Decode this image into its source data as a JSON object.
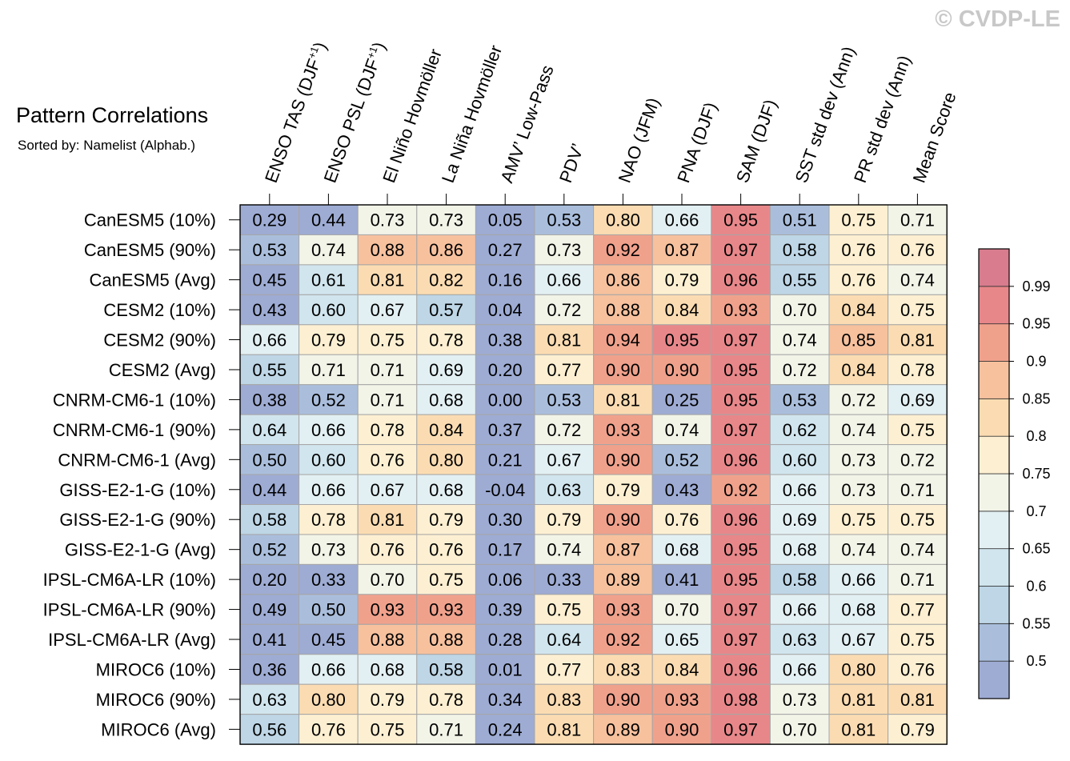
{
  "chart_data": {
    "type": "heatmap",
    "title": "Pattern Correlations",
    "subtitle": "Sorted by: Namelist (Alphab.)",
    "watermark": "© CVDP-LE",
    "columns": [
      "ENSO TAS (DJF+1)",
      "ENSO PSL (DJF+1)",
      "El Niño Hovmöller",
      "La Niña Hovmöller",
      "AMV’ Low-Pass",
      "PDV’",
      "NAO (JFM)",
      "PNA (DJF)",
      "SAM (DJF)",
      "SST std dev (Ann)",
      "PR std dev (Ann)",
      "Mean Score"
    ],
    "rows": [
      "CanESM5 (10%)",
      "CanESM5 (90%)",
      "CanESM5 (Avg)",
      "CESM2 (10%)",
      "CESM2 (90%)",
      "CESM2 (Avg)",
      "CNRM-CM6-1 (10%)",
      "CNRM-CM6-1 (90%)",
      "CNRM-CM6-1 (Avg)",
      "GISS-E2-1-G (10%)",
      "GISS-E2-1-G (90%)",
      "GISS-E2-1-G (Avg)",
      "IPSL-CM6A-LR (10%)",
      "IPSL-CM6A-LR (90%)",
      "IPSL-CM6A-LR (Avg)",
      "MIROC6 (10%)",
      "MIROC6 (90%)",
      "MIROC6 (Avg)"
    ],
    "values": [
      [
        "0.29",
        "0.44",
        "0.73",
        "0.73",
        "0.05",
        "0.53",
        "0.80",
        "0.66",
        "0.95",
        "0.51",
        "0.75",
        "0.71"
      ],
      [
        "0.53",
        "0.74",
        "0.88",
        "0.86",
        "0.27",
        "0.73",
        "0.92",
        "0.87",
        "0.97",
        "0.58",
        "0.76",
        "0.76"
      ],
      [
        "0.45",
        "0.61",
        "0.81",
        "0.82",
        "0.16",
        "0.66",
        "0.86",
        "0.79",
        "0.96",
        "0.55",
        "0.76",
        "0.74"
      ],
      [
        "0.43",
        "0.60",
        "0.67",
        "0.57",
        "0.04",
        "0.72",
        "0.88",
        "0.84",
        "0.93",
        "0.70",
        "0.84",
        "0.75"
      ],
      [
        "0.66",
        "0.79",
        "0.75",
        "0.78",
        "0.38",
        "0.81",
        "0.94",
        "0.95",
        "0.97",
        "0.74",
        "0.85",
        "0.81"
      ],
      [
        "0.55",
        "0.71",
        "0.71",
        "0.69",
        "0.20",
        "0.77",
        "0.90",
        "0.90",
        "0.95",
        "0.72",
        "0.84",
        "0.78"
      ],
      [
        "0.38",
        "0.52",
        "0.71",
        "0.68",
        "0.00",
        "0.53",
        "0.81",
        "0.25",
        "0.95",
        "0.53",
        "0.72",
        "0.69"
      ],
      [
        "0.64",
        "0.66",
        "0.78",
        "0.84",
        "0.37",
        "0.72",
        "0.93",
        "0.74",
        "0.97",
        "0.62",
        "0.74",
        "0.75"
      ],
      [
        "0.50",
        "0.60",
        "0.76",
        "0.80",
        "0.21",
        "0.67",
        "0.90",
        "0.52",
        "0.96",
        "0.60",
        "0.73",
        "0.72"
      ],
      [
        "0.44",
        "0.66",
        "0.67",
        "0.68",
        "-0.04",
        "0.63",
        "0.79",
        "0.43",
        "0.92",
        "0.66",
        "0.73",
        "0.71"
      ],
      [
        "0.58",
        "0.78",
        "0.81",
        "0.79",
        "0.30",
        "0.79",
        "0.90",
        "0.76",
        "0.96",
        "0.69",
        "0.75",
        "0.75"
      ],
      [
        "0.52",
        "0.73",
        "0.76",
        "0.76",
        "0.17",
        "0.74",
        "0.87",
        "0.68",
        "0.95",
        "0.68",
        "0.74",
        "0.74"
      ],
      [
        "0.20",
        "0.33",
        "0.70",
        "0.75",
        "0.06",
        "0.33",
        "0.89",
        "0.41",
        "0.95",
        "0.58",
        "0.66",
        "0.71"
      ],
      [
        "0.49",
        "0.50",
        "0.93",
        "0.93",
        "0.39",
        "0.75",
        "0.93",
        "0.70",
        "0.97",
        "0.66",
        "0.68",
        "0.77"
      ],
      [
        "0.41",
        "0.45",
        "0.88",
        "0.88",
        "0.28",
        "0.64",
        "0.92",
        "0.65",
        "0.97",
        "0.63",
        "0.67",
        "0.75"
      ],
      [
        "0.36",
        "0.66",
        "0.68",
        "0.58",
        "0.01",
        "0.77",
        "0.83",
        "0.84",
        "0.96",
        "0.66",
        "0.80",
        "0.76"
      ],
      [
        "0.63",
        "0.80",
        "0.79",
        "0.78",
        "0.34",
        "0.83",
        "0.90",
        "0.93",
        "0.98",
        "0.73",
        "0.81",
        "0.81"
      ],
      [
        "0.56",
        "0.76",
        "0.75",
        "0.71",
        "0.24",
        "0.81",
        "0.89",
        "0.90",
        "0.97",
        "0.70",
        "0.81",
        "0.79"
      ]
    ],
    "colorbar": {
      "levels": [
        0.5,
        0.55,
        0.6,
        0.65,
        0.7,
        0.75,
        0.8,
        0.85,
        0.9,
        0.95,
        0.99
      ],
      "tick_labels": [
        "0.5",
        "0.55",
        "0.6",
        "0.65",
        "0.7",
        "0.75",
        "0.8",
        "0.85",
        "0.9",
        "0.95",
        "0.99"
      ],
      "colors": [
        "#9eacd4",
        "#aabedc",
        "#bed6e6",
        "#d1e5ee",
        "#e3f0f3",
        "#f2f4e8",
        "#fdf0d2",
        "#fbdcb2",
        "#f7c19e",
        "#f0a18c",
        "#e8878a",
        "#d87c8e"
      ],
      "placement": "right"
    }
  }
}
